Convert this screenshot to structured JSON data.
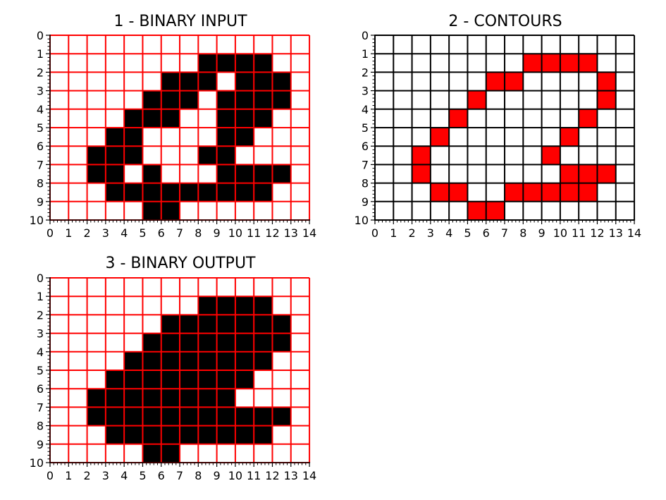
{
  "chart_data": [
    {
      "type": "heatmap",
      "title": "1 - BINARY INPUT",
      "cell_color": "#000000",
      "background_color": "#ffffff",
      "grid_color": "#ff0000",
      "xlim": [
        0,
        14
      ],
      "ylim": [
        0,
        10
      ],
      "x_ticks": [
        "0",
        "1",
        "2",
        "3",
        "4",
        "5",
        "6",
        "7",
        "8",
        "9",
        "10",
        "11",
        "12",
        "13",
        "14"
      ],
      "y_ticks": [
        "0",
        "1",
        "2",
        "3",
        "4",
        "5",
        "6",
        "7",
        "8",
        "9",
        "10"
      ],
      "cells": [
        [
          8,
          1
        ],
        [
          9,
          1
        ],
        [
          10,
          1
        ],
        [
          11,
          1
        ],
        [
          6,
          2
        ],
        [
          7,
          2
        ],
        [
          8,
          2
        ],
        [
          10,
          2
        ],
        [
          11,
          2
        ],
        [
          12,
          2
        ],
        [
          5,
          3
        ],
        [
          6,
          3
        ],
        [
          7,
          3
        ],
        [
          9,
          3
        ],
        [
          10,
          3
        ],
        [
          11,
          3
        ],
        [
          12,
          3
        ],
        [
          4,
          4
        ],
        [
          5,
          4
        ],
        [
          6,
          4
        ],
        [
          9,
          4
        ],
        [
          10,
          4
        ],
        [
          11,
          4
        ],
        [
          3,
          5
        ],
        [
          4,
          5
        ],
        [
          9,
          5
        ],
        [
          10,
          5
        ],
        [
          2,
          6
        ],
        [
          3,
          6
        ],
        [
          4,
          6
        ],
        [
          8,
          6
        ],
        [
          9,
          6
        ],
        [
          2,
          7
        ],
        [
          3,
          7
        ],
        [
          5,
          7
        ],
        [
          9,
          7
        ],
        [
          10,
          7
        ],
        [
          11,
          7
        ],
        [
          12,
          7
        ],
        [
          3,
          8
        ],
        [
          4,
          8
        ],
        [
          5,
          8
        ],
        [
          6,
          8
        ],
        [
          7,
          8
        ],
        [
          8,
          8
        ],
        [
          9,
          8
        ],
        [
          10,
          8
        ],
        [
          11,
          8
        ],
        [
          5,
          9
        ],
        [
          6,
          9
        ]
      ]
    },
    {
      "type": "heatmap",
      "title": "2 - CONTOURS",
      "cell_color": "#ff0000",
      "background_color": "#ffffff",
      "grid_color": "#000000",
      "xlim": [
        0,
        14
      ],
      "ylim": [
        0,
        10
      ],
      "x_ticks": [
        "0",
        "1",
        "2",
        "3",
        "4",
        "5",
        "6",
        "7",
        "8",
        "9",
        "10",
        "11",
        "12",
        "13",
        "14"
      ],
      "y_ticks": [
        "0",
        "1",
        "2",
        "3",
        "4",
        "5",
        "6",
        "7",
        "8",
        "9",
        "10"
      ],
      "cells": [
        [
          8,
          1
        ],
        [
          9,
          1
        ],
        [
          10,
          1
        ],
        [
          11,
          1
        ],
        [
          6,
          2
        ],
        [
          7,
          2
        ],
        [
          12,
          2
        ],
        [
          5,
          3
        ],
        [
          12,
          3
        ],
        [
          4,
          4
        ],
        [
          11,
          4
        ],
        [
          3,
          5
        ],
        [
          10,
          5
        ],
        [
          2,
          6
        ],
        [
          9,
          6
        ],
        [
          2,
          7
        ],
        [
          10,
          7
        ],
        [
          11,
          7
        ],
        [
          12,
          7
        ],
        [
          3,
          8
        ],
        [
          4,
          8
        ],
        [
          7,
          8
        ],
        [
          8,
          8
        ],
        [
          9,
          8
        ],
        [
          10,
          8
        ],
        [
          11,
          8
        ],
        [
          5,
          9
        ],
        [
          6,
          9
        ]
      ]
    },
    {
      "type": "heatmap",
      "title": "3 - BINARY OUTPUT",
      "cell_color": "#000000",
      "background_color": "#ffffff",
      "grid_color": "#ff0000",
      "xlim": [
        0,
        14
      ],
      "ylim": [
        0,
        10
      ],
      "x_ticks": [
        "0",
        "1",
        "2",
        "3",
        "4",
        "5",
        "6",
        "7",
        "8",
        "9",
        "10",
        "11",
        "12",
        "13",
        "14"
      ],
      "y_ticks": [
        "0",
        "1",
        "2",
        "3",
        "4",
        "5",
        "6",
        "7",
        "8",
        "9",
        "10"
      ],
      "cells": [
        [
          8,
          1
        ],
        [
          9,
          1
        ],
        [
          10,
          1
        ],
        [
          11,
          1
        ],
        [
          6,
          2
        ],
        [
          7,
          2
        ],
        [
          8,
          2
        ],
        [
          9,
          2
        ],
        [
          10,
          2
        ],
        [
          11,
          2
        ],
        [
          12,
          2
        ],
        [
          5,
          3
        ],
        [
          6,
          3
        ],
        [
          7,
          3
        ],
        [
          8,
          3
        ],
        [
          9,
          3
        ],
        [
          10,
          3
        ],
        [
          11,
          3
        ],
        [
          12,
          3
        ],
        [
          4,
          4
        ],
        [
          5,
          4
        ],
        [
          6,
          4
        ],
        [
          7,
          4
        ],
        [
          8,
          4
        ],
        [
          9,
          4
        ],
        [
          10,
          4
        ],
        [
          11,
          4
        ],
        [
          3,
          5
        ],
        [
          4,
          5
        ],
        [
          5,
          5
        ],
        [
          6,
          5
        ],
        [
          7,
          5
        ],
        [
          8,
          5
        ],
        [
          9,
          5
        ],
        [
          10,
          5
        ],
        [
          2,
          6
        ],
        [
          3,
          6
        ],
        [
          4,
          6
        ],
        [
          5,
          6
        ],
        [
          6,
          6
        ],
        [
          7,
          6
        ],
        [
          8,
          6
        ],
        [
          9,
          6
        ],
        [
          2,
          7
        ],
        [
          3,
          7
        ],
        [
          4,
          7
        ],
        [
          5,
          7
        ],
        [
          6,
          7
        ],
        [
          7,
          7
        ],
        [
          8,
          7
        ],
        [
          9,
          7
        ],
        [
          10,
          7
        ],
        [
          11,
          7
        ],
        [
          12,
          7
        ],
        [
          3,
          8
        ],
        [
          4,
          8
        ],
        [
          5,
          8
        ],
        [
          6,
          8
        ],
        [
          7,
          8
        ],
        [
          8,
          8
        ],
        [
          9,
          8
        ],
        [
          10,
          8
        ],
        [
          11,
          8
        ],
        [
          5,
          9
        ],
        [
          6,
          9
        ]
      ]
    }
  ]
}
